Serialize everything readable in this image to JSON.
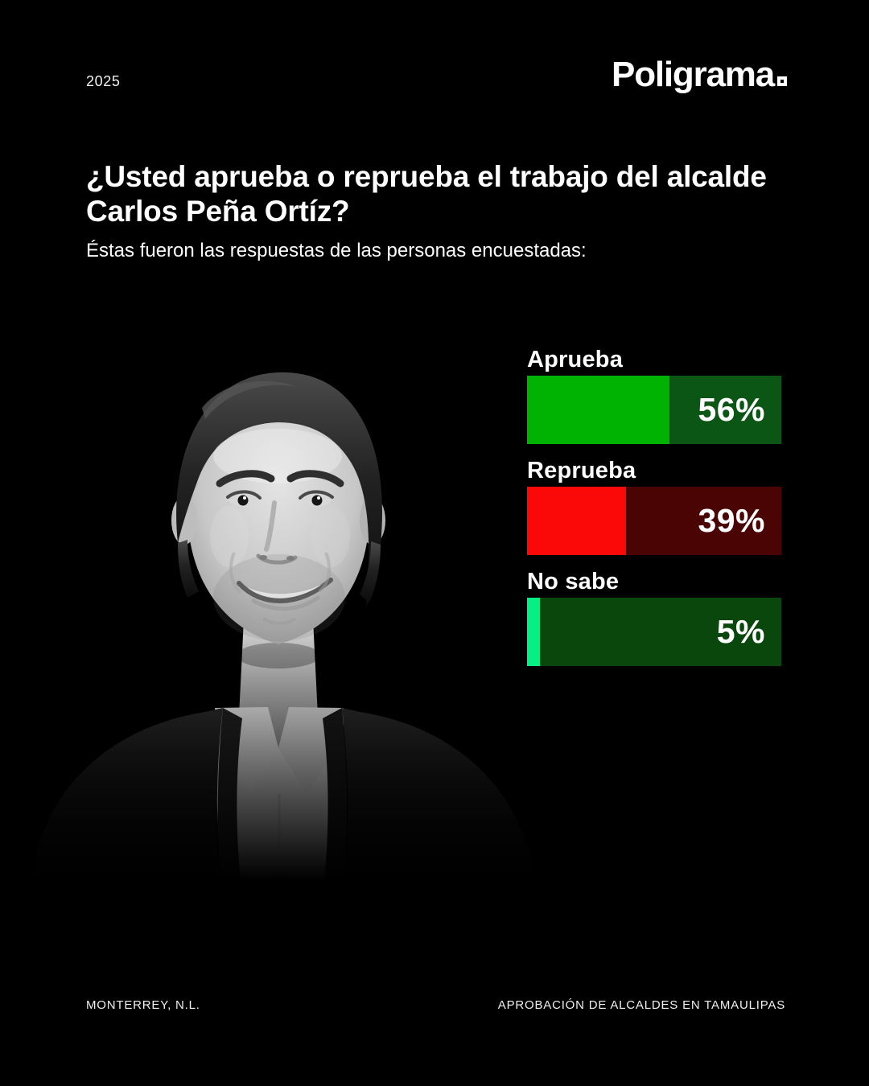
{
  "page": {
    "year": "2025"
  },
  "brand": {
    "name": "Poligrama"
  },
  "question": {
    "title": "¿Usted aprueba o reprueba el trabajo del alcalde Carlos Peña Ortíz?",
    "subtitle": "Éstas fueron las respuestas de las personas encuestadas:"
  },
  "chart_data": {
    "type": "bar",
    "orientation": "horizontal",
    "title": "¿Usted aprueba o reprueba el trabajo del alcalde Carlos Peña Ortíz?",
    "subtitle": "Éstas fueron las respuestas de las personas encuestadas:",
    "categories": [
      "Aprueba",
      "Reprueba",
      "No sabe"
    ],
    "values": [
      56,
      39,
      5
    ],
    "unit": "%",
    "xlim": [
      0,
      100
    ],
    "grid": false,
    "legend": false,
    "bars": [
      {
        "label": "Aprueba",
        "value": 56,
        "value_label": "56%",
        "fill_color": "#00b303",
        "track_color": "#0b5614"
      },
      {
        "label": "Reprueba",
        "value": 39,
        "value_label": "39%",
        "fill_color": "#fb0808",
        "track_color": "#4b0404"
      },
      {
        "label": "No sabe",
        "value": 5,
        "value_label": "5%",
        "fill_color": "#06ef85",
        "track_color": "#0a470c"
      }
    ]
  },
  "portrait": {
    "description": "black-and-white portrait of smiling man in dark suit jacket and open white shirt"
  },
  "footer": {
    "left": "MONTERREY, N.L.",
    "right": "APROBACIÓN DE ALCALDES EN TAMAULIPAS"
  },
  "colors": {
    "background": "#000000",
    "text": "#ffffff",
    "approve_fill": "#00b303",
    "approve_track": "#0b5614",
    "disapprove_fill": "#fb0808",
    "disapprove_track": "#4b0404",
    "unknown_fill": "#06ef85",
    "unknown_track": "#0a470c"
  }
}
